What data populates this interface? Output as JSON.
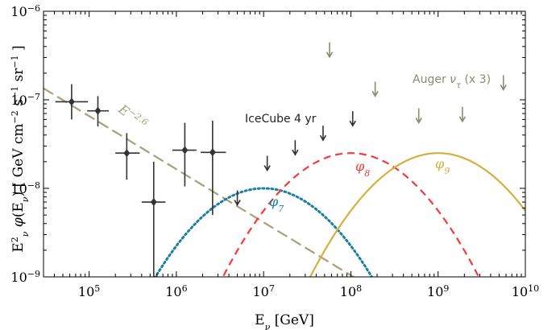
{
  "chart_data": {
    "type": "line",
    "xlabel": "E_ν [GeV]",
    "ylabel": "E_ν^2 φ(E_ν)  [ GeV cm^-2 s^-1 sr^-1 ]",
    "x_scale": "log",
    "y_scale": "log",
    "xlim": [
      30000,
      10000000000
    ],
    "ylim": [
      1e-09,
      1e-06
    ],
    "x_ticks": [
      {
        "value": 100000,
        "base": "10",
        "exp": "5"
      },
      {
        "value": 1000000,
        "base": "10",
        "exp": "6"
      },
      {
        "value": 10000000,
        "base": "10",
        "exp": "7"
      },
      {
        "value": 100000000,
        "base": "10",
        "exp": "8"
      },
      {
        "value": 1000000000,
        "base": "10",
        "exp": "9"
      },
      {
        "value": 10000000000,
        "base": "10",
        "exp": "10"
      }
    ],
    "y_ticks": [
      {
        "value": 1e-09,
        "base": "10",
        "exp": "−9"
      },
      {
        "value": 1e-08,
        "base": "10",
        "exp": "−8"
      },
      {
        "value": 1e-07,
        "base": "10",
        "exp": "−7"
      },
      {
        "value": 1e-06,
        "base": "10",
        "exp": "−6"
      }
    ],
    "icecube_points": [
      {
        "x": 63000,
        "y": 9.5e-08,
        "xerr": [
          41000,
          97000
        ],
        "yerr": [
          6e-08,
          1.5e-07
        ]
      },
      {
        "x": 126000,
        "y": 7.5e-08,
        "xerr": [
          95000,
          168000
        ],
        "yerr": [
          5e-08,
          1.1e-07
        ]
      },
      {
        "x": 270000,
        "y": 2.5e-08,
        "xerr": [
          200000,
          380000
        ],
        "yerr": [
          1.25e-08,
          4.2e-08
        ]
      },
      {
        "x": 550000,
        "y": 7e-09,
        "xerr": [
          400000,
          750000
        ],
        "yerr": [
          1e-09,
          2e-08
        ]
      },
      {
        "x": 1250000,
        "y": 2.7e-08,
        "xerr": [
          900000,
          1700000
        ],
        "yerr": [
          1.05e-08,
          5.5e-08
        ]
      },
      {
        "x": 2600000,
        "y": 2.55e-08,
        "xerr": [
          1900000,
          3700000
        ],
        "yerr": [
          5e-09,
          5.8e-08
        ]
      }
    ],
    "icecube_limits": [
      5000000,
      11000000,
      23000000,
      48000000,
      105000000
    ],
    "icecube_limit_values": [
      6.5e-09,
      1.6e-08,
      2.4e-08,
      3.5e-08,
      5.1e-08
    ],
    "auger_limits": [
      57000000,
      190000000,
      600000000,
      1900000000,
      5600000000
    ],
    "auger_limit_values": [
      3.05e-07,
      1.1e-07,
      5.5e-08,
      5.7e-08,
      1.3e-07
    ],
    "auger_top_limit": {
      "x": 57000000,
      "y": 3.05e-07
    },
    "series": [
      {
        "name": "E^-2.6",
        "style": "dashed",
        "color": "#a8a07a",
        "norm_x": 30000,
        "norm_y": 1.35e-07,
        "index": -0.6,
        "x_range": [
          30000,
          160000000
        ]
      },
      {
        "name": "φ7",
        "style": "dotted",
        "color": "#1a7fa0",
        "peak_x": 10000000,
        "peak_y": 1e-08,
        "width_decades": 0.62,
        "x_range": [
          500000,
          200000000
        ]
      },
      {
        "name": "φ8",
        "style": "dashed",
        "color": "#f03c3c",
        "peak_x": 100000000,
        "peak_y": 2.5e-08,
        "width_decades": 0.62,
        "x_range": [
          2000000,
          6000000000
        ]
      },
      {
        "name": "φ9",
        "style": "solid",
        "color": "#d4b040",
        "peak_x": 1000000000,
        "peak_y": 2.5e-08,
        "width_decades": 0.62,
        "x_range": [
          20000000,
          10000000000
        ]
      }
    ],
    "annotations": {
      "icecube": "IceCube 4 yr",
      "auger": "Auger ν_τ (x 3)",
      "e26_base": "E",
      "e26_exp": "−2.6",
      "phi7": "φ7",
      "phi8": "φ8",
      "phi9": "φ9"
    },
    "colors": {
      "icecube": "#333333",
      "auger": "#8b8b70",
      "phi7": "#1a7fa0",
      "phi8": "#f03c3c",
      "phi9": "#d4b040",
      "e26": "#a8a07a"
    }
  }
}
